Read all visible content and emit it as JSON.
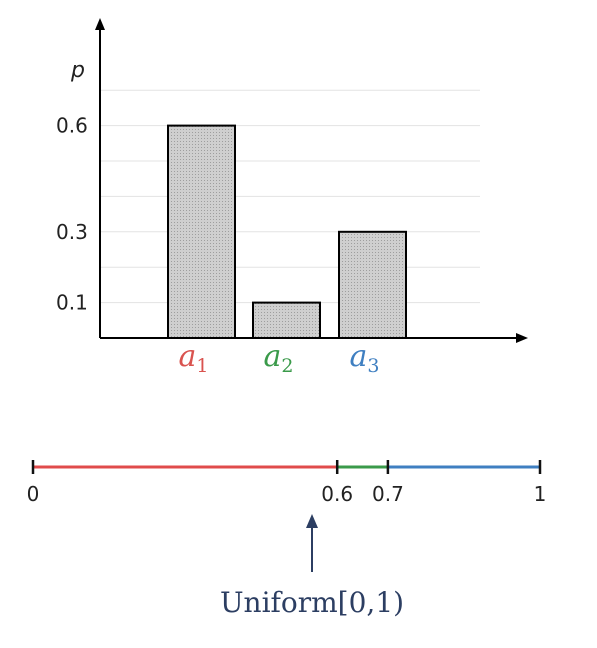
{
  "chart_data": {
    "type": "bar",
    "ylabel": "p",
    "categories": [
      {
        "base": "a",
        "sub": "1",
        "color": "#d9534f"
      },
      {
        "base": "a",
        "sub": "2",
        "color": "#3a9a4a"
      },
      {
        "base": "a",
        "sub": "3",
        "color": "#3f7fc1"
      }
    ],
    "values": [
      0.6,
      0.1,
      0.3
    ],
    "yticks": [
      "0.1",
      "0.3",
      "0.6"
    ],
    "ytick_values": [
      0.1,
      0.3,
      0.6
    ],
    "ylim": [
      0,
      0.7
    ],
    "grid": true,
    "bar_color": "#c8c8c8"
  },
  "number_line": {
    "range": [
      0,
      1
    ],
    "segments": [
      {
        "from": 0,
        "to": 0.6,
        "color": "#e04b4b"
      },
      {
        "from": 0.6,
        "to": 0.7,
        "color": "#3a9a4a"
      },
      {
        "from": 0.7,
        "to": 1,
        "color": "#3f7fc1"
      }
    ],
    "ticks": [
      {
        "value": 0,
        "label": "0"
      },
      {
        "value": 0.6,
        "label": "0.6"
      },
      {
        "value": 0.7,
        "label": "0.7"
      },
      {
        "value": 1,
        "label": "1"
      }
    ],
    "arrow_at": 0.6,
    "caption": "Uniform[0,1)"
  }
}
